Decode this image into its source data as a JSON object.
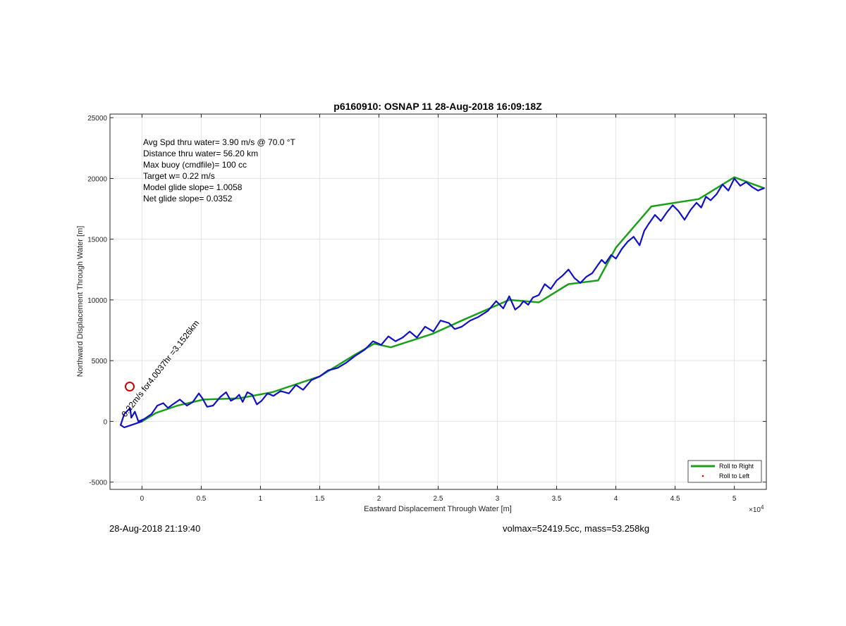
{
  "chart_data": {
    "type": "line",
    "title": "p6160910: OSNAP 11 28-Aug-2018 16:09:18Z",
    "xlabel": "Eastward Displacement Through Water [m]",
    "ylabel": "Northward Displacement Through Water [m]",
    "x_exponent_label": "×10",
    "x_exponent_power": "4",
    "xlim": [
      -2700,
      52700
    ],
    "ylim": [
      -5600,
      25300
    ],
    "grid": true,
    "x_ticks": [
      0,
      5000,
      10000,
      15000,
      20000,
      25000,
      30000,
      35000,
      40000,
      45000,
      50000
    ],
    "x_tick_labels": [
      "0",
      "0.5",
      "1",
      "1.5",
      "2",
      "2.5",
      "3",
      "3.5",
      "4",
      "4.5",
      "5"
    ],
    "y_ticks": [
      -5000,
      0,
      5000,
      10000,
      15000,
      20000,
      25000
    ],
    "y_tick_labels": [
      "-5000",
      "0",
      "5000",
      "10000",
      "15000",
      "20000",
      "25000"
    ],
    "annotations": [
      "Avg Spd thru water=  3.90 m/s @  70.0 °T",
      "Distance thru water= 56.20 km",
      "Max buoy (cmdfile)= 100 cc",
      "Target w= 0.22 m/s",
      "Model glide slope= 1.0058",
      "Net glide slope= 0.0352"
    ],
    "current_label": "0.22m/s for4.0037hr =3.1526km",
    "legend": {
      "location": "bottom-right",
      "entries": [
        {
          "label": "Roll to Right",
          "color": "#1aa01a",
          "marker": "line"
        },
        {
          "label": "Roll to Left",
          "color": "#e00000",
          "marker": "dot"
        }
      ]
    },
    "series": [
      {
        "name": "Roll to Right",
        "color": "#1aa01a",
        "x": [
          0,
          1200,
          3000,
          5200,
          8200,
          11000,
          15000,
          18000,
          19600,
          21000,
          24500,
          27000,
          31000,
          33500,
          36000,
          38500,
          40000,
          41500,
          43000,
          47000,
          50000,
          52500
        ],
        "y": [
          0,
          700,
          1300,
          1800,
          1900,
          2400,
          3700,
          5500,
          6400,
          6100,
          7200,
          8300,
          10000,
          9800,
          11300,
          11600,
          14300,
          16000,
          17700,
          18300,
          20100,
          19200
        ]
      },
      {
        "name": "track",
        "color": "#1010c8",
        "x": [
          0,
          -600,
          -1200,
          -1500,
          -1800,
          -1500,
          -1000,
          -900,
          -600,
          -300,
          200,
          800,
          1300,
          1800,
          2200,
          2600,
          3200,
          3800,
          4300,
          4800,
          5100,
          5500,
          6000,
          6600,
          7100,
          7500,
          7900,
          8200,
          8500,
          8900,
          9300,
          9700,
          10100,
          10600,
          11100,
          11700,
          12400,
          13000,
          13600,
          14300,
          15000,
          15700,
          16500,
          17200,
          18000,
          18800,
          19500,
          20200,
          20800,
          21400,
          22000,
          22600,
          23200,
          23900,
          24600,
          25200,
          25900,
          26400,
          27000,
          27700,
          28400,
          29200,
          29900,
          30500,
          31000,
          31500,
          31900,
          32200,
          32600,
          33000,
          33500,
          34000,
          34500,
          35000,
          35500,
          36000,
          36500,
          37000,
          37500,
          38000,
          38500,
          38800,
          39100,
          39600,
          40000,
          40500,
          41000,
          41500,
          42000,
          42400,
          42800,
          43300,
          43800,
          44300,
          44800,
          45300,
          45800,
          46300,
          46800,
          47200,
          47600,
          48000,
          48500,
          49000,
          49500,
          50000,
          50500,
          51000,
          51500,
          52000,
          52500
        ],
        "y": [
          0,
          -200,
          -400,
          -500,
          -300,
          600,
          1100,
          300,
          800,
          0,
          200,
          600,
          1300,
          1500,
          1100,
          1400,
          1800,
          1300,
          1600,
          2300,
          1900,
          1200,
          1300,
          2000,
          2400,
          1700,
          1900,
          2200,
          1600,
          2400,
          2200,
          1400,
          1700,
          2300,
          2100,
          2500,
          2300,
          3000,
          2600,
          3400,
          3700,
          4200,
          4400,
          4800,
          5400,
          5900,
          6600,
          6300,
          7000,
          6600,
          6900,
          7400,
          6900,
          7800,
          7400,
          8300,
          8100,
          7600,
          7800,
          8300,
          8600,
          9100,
          9900,
          9300,
          10300,
          9200,
          9500,
          9900,
          9600,
          10200,
          10400,
          11300,
          10900,
          11600,
          12000,
          12500,
          11800,
          11400,
          11900,
          12200,
          12900,
          13300,
          13000,
          13700,
          13400,
          14200,
          14800,
          15200,
          14500,
          15700,
          16300,
          17000,
          16500,
          17200,
          17800,
          17300,
          16600,
          17400,
          18000,
          17600,
          18500,
          18200,
          18700,
          19500,
          19000,
          20000,
          19400,
          19700,
          19300,
          19000,
          19200
        ]
      }
    ]
  },
  "footer": {
    "left": "28-Aug-2018 21:19:40",
    "right": "volmax=52419.5cc, mass=53.258kg"
  }
}
